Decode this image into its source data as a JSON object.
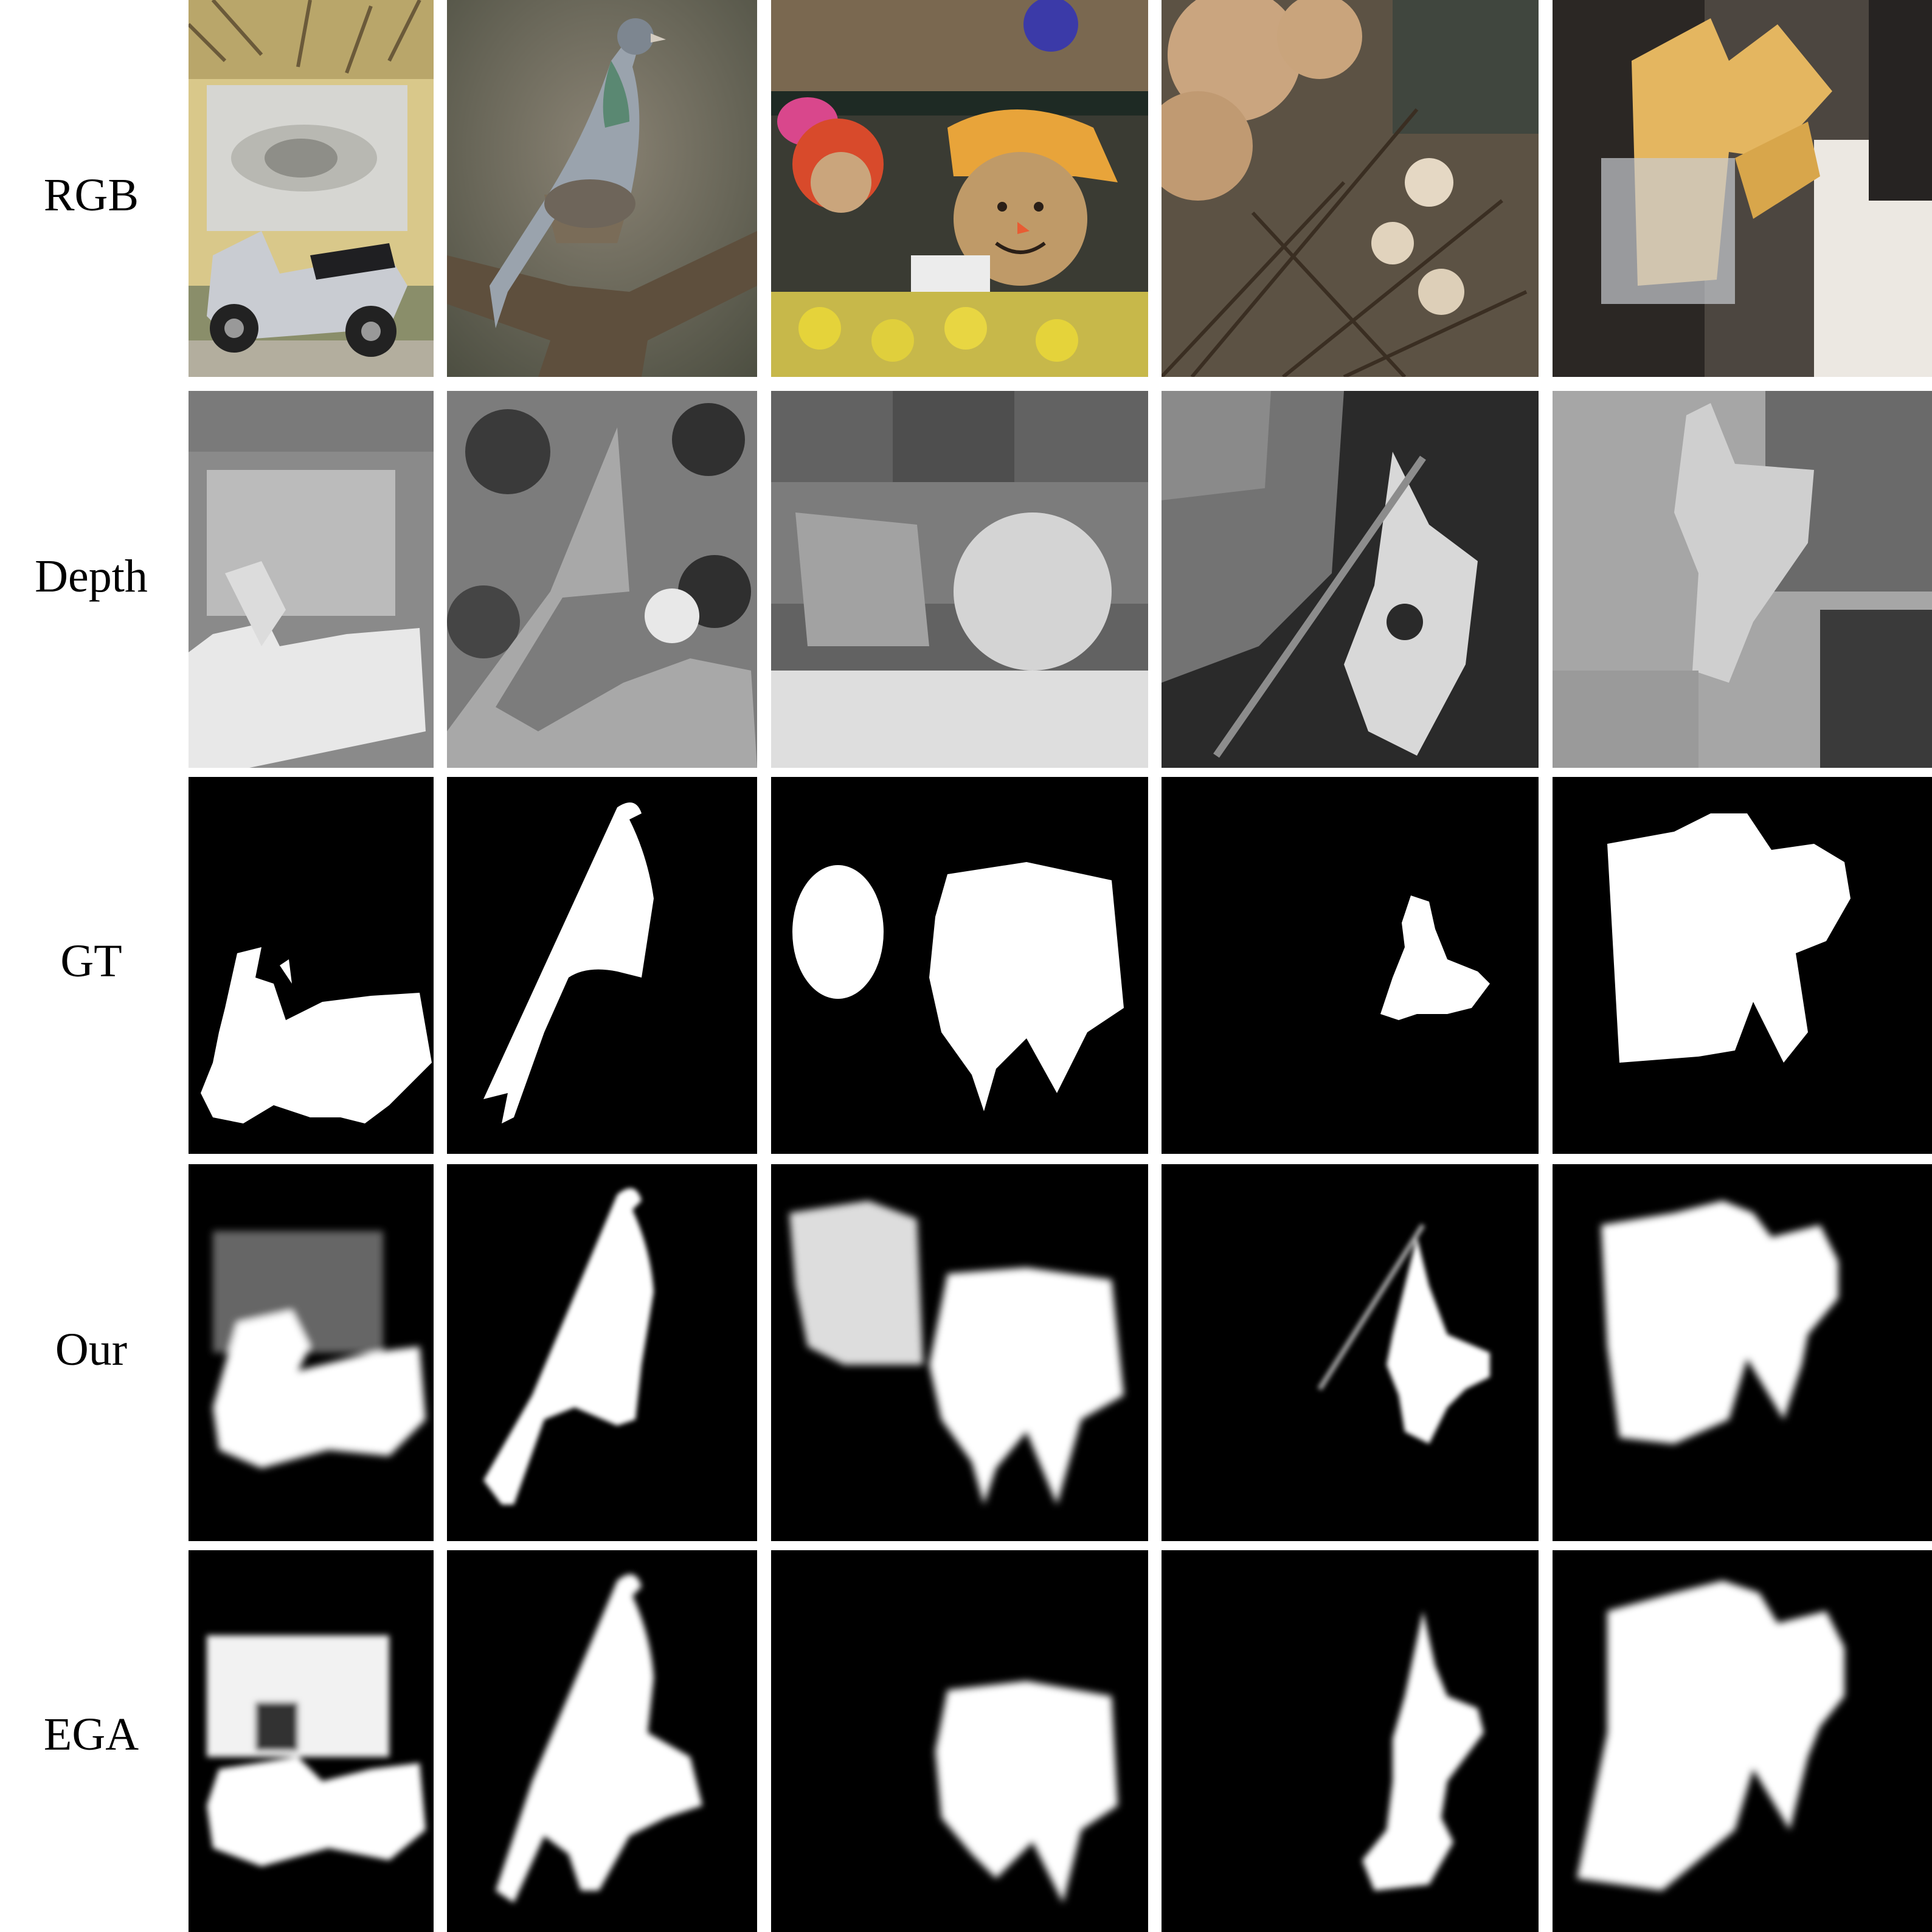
{
  "figure": {
    "rows": [
      {
        "key": "rgb",
        "label": "RGB"
      },
      {
        "key": "depth",
        "label": "Depth"
      },
      {
        "key": "gt",
        "label": "GT"
      },
      {
        "key": "our",
        "label": "Our"
      },
      {
        "key": "ega",
        "label": "EGA"
      }
    ],
    "columns": [
      {
        "key": "scooter-sculpture",
        "subject": "scooter"
      },
      {
        "key": "pigeon",
        "subject": "pigeon"
      },
      {
        "key": "scarecrow-dolls",
        "subject": "scarecrow"
      },
      {
        "key": "dried-hydrangea",
        "subject": "flower"
      },
      {
        "key": "pamphlet-holder",
        "subject": "paper"
      }
    ]
  },
  "colors": {
    "background": "#ffffff",
    "mask_bg": "#000000",
    "mask_fg": "#ffffff"
  }
}
